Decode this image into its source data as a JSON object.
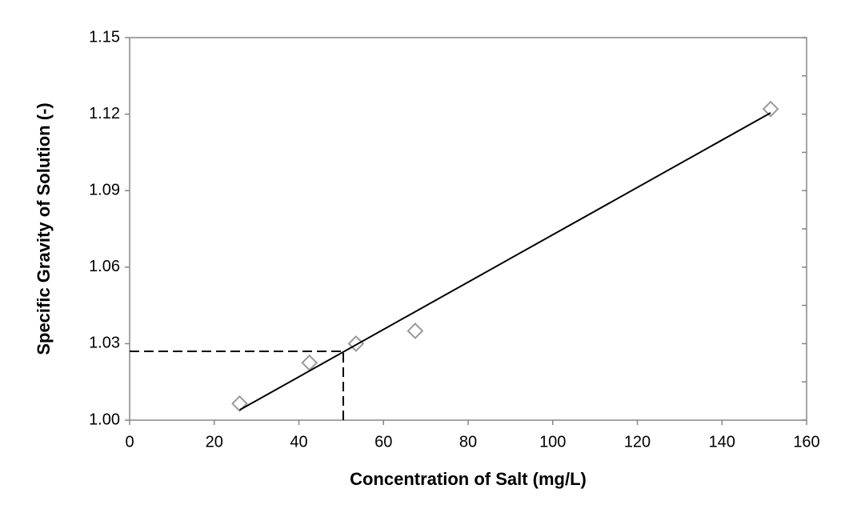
{
  "chart_data": {
    "type": "scatter",
    "xlabel": "Concentration of Salt (mg/L)",
    "ylabel": "Specific Gravity of Solution (-)",
    "xlim": [
      0,
      160
    ],
    "ylim": [
      1,
      1.15
    ],
    "xticks": [
      0,
      20,
      40,
      60,
      80,
      100,
      120,
      140,
      160
    ],
    "yticks": [
      {
        "value": 1,
        "label": "1.00"
      },
      1.03,
      1.06,
      1.09,
      1.12,
      1.15
    ],
    "y_minor_ticks": [
      1.015,
      1.045,
      1.075,
      1.105,
      1.135
    ],
    "series": [
      {
        "style": "marker",
        "marker": "diamond",
        "color": "#999999",
        "x": [
          26,
          42.5,
          53.5,
          67.5,
          151.5
        ],
        "values": [
          1.0065,
          1.0225,
          1.03,
          1.035,
          1.122
        ]
      },
      {
        "style": "line",
        "color": "#000000",
        "x": [
          26,
          151.5
        ],
        "values": [
          1.004,
          1.1205
        ]
      }
    ],
    "reference": {
      "x": 50.5,
      "y": 1.027,
      "color": "#000000"
    }
  }
}
